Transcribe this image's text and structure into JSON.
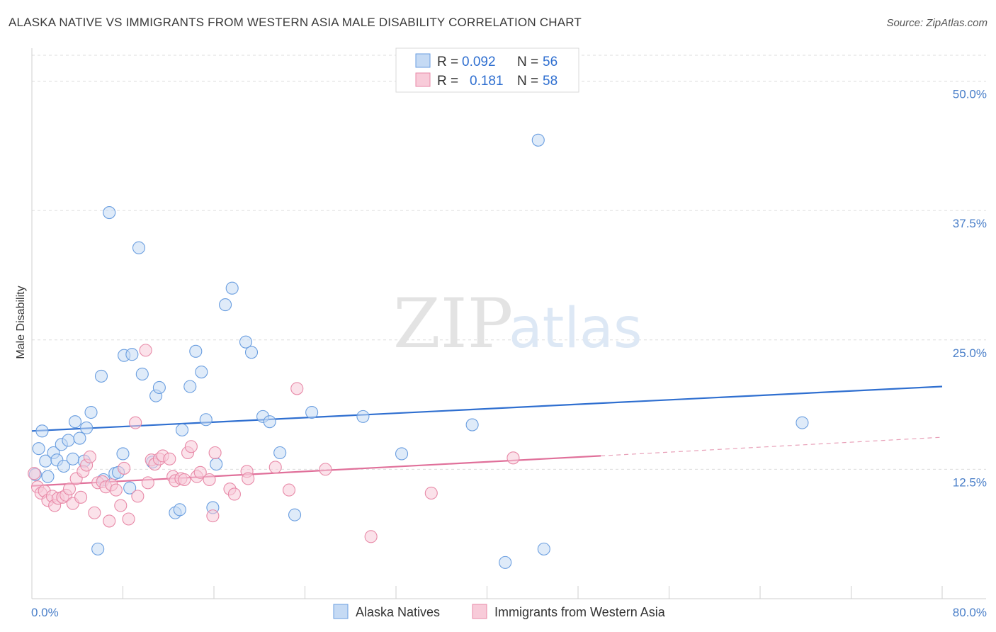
{
  "title": "ALASKA NATIVE VS IMMIGRANTS FROM WESTERN ASIA MALE DISABILITY CORRELATION CHART",
  "source": "Source: ZipAtlas.com",
  "watermark": {
    "zip": "ZIP",
    "atlas": "atlas"
  },
  "legend_top": {
    "r_label": "R =",
    "n_label": "N =",
    "rows": [
      {
        "r": "0.092",
        "n": "56"
      },
      {
        "r": "0.181",
        "n": "58"
      }
    ]
  },
  "chart_data": {
    "type": "scatter",
    "title": "ALASKA NATIVE VS IMMIGRANTS FROM WESTERN ASIA MALE DISABILITY CORRELATION CHART",
    "xlabel": "",
    "ylabel": "Male Disability",
    "xlim": [
      0,
      80
    ],
    "ylim": [
      0,
      52.5
    ],
    "x_ticks": [
      "0.0%",
      "80.0%"
    ],
    "y_ticks": [
      {
        "value": 12.5,
        "label": "12.5%"
      },
      {
        "value": 25,
        "label": "25.0%"
      },
      {
        "value": 37.5,
        "label": "37.5%"
      },
      {
        "value": 50,
        "label": "50.0%"
      }
    ],
    "grid": true,
    "legend_position": "top-center",
    "series": [
      {
        "name": "Alaska Natives",
        "color": "#6a9ee0",
        "fill": "#c5daf4",
        "trend": {
          "x": [
            0,
            80
          ],
          "y": [
            16.2,
            20.5
          ],
          "style": "solid"
        },
        "points": [
          [
            0.3,
            12.0
          ],
          [
            0.6,
            14.5
          ],
          [
            0.9,
            16.2
          ],
          [
            1.2,
            13.3
          ],
          [
            1.4,
            11.8
          ],
          [
            1.9,
            14.1
          ],
          [
            2.2,
            13.4
          ],
          [
            2.6,
            14.9
          ],
          [
            2.8,
            12.8
          ],
          [
            3.2,
            15.3
          ],
          [
            3.6,
            13.5
          ],
          [
            3.8,
            17.1
          ],
          [
            4.2,
            15.5
          ],
          [
            4.6,
            13.3
          ],
          [
            4.8,
            16.5
          ],
          [
            5.2,
            18.0
          ],
          [
            5.8,
            4.8
          ],
          [
            6.1,
            21.5
          ],
          [
            6.3,
            11.5
          ],
          [
            6.8,
            37.3
          ],
          [
            7.3,
            12.1
          ],
          [
            7.6,
            12.2
          ],
          [
            8.0,
            14.0
          ],
          [
            8.1,
            23.5
          ],
          [
            8.6,
            10.7
          ],
          [
            8.8,
            23.6
          ],
          [
            9.4,
            33.9
          ],
          [
            9.7,
            21.7
          ],
          [
            10.6,
            13.2
          ],
          [
            10.9,
            19.6
          ],
          [
            11.2,
            20.4
          ],
          [
            12.6,
            8.3
          ],
          [
            13.0,
            8.6
          ],
          [
            13.2,
            16.3
          ],
          [
            13.9,
            20.5
          ],
          [
            14.4,
            23.9
          ],
          [
            14.9,
            21.9
          ],
          [
            15.3,
            17.3
          ],
          [
            15.9,
            8.8
          ],
          [
            16.2,
            13.0
          ],
          [
            17.0,
            28.4
          ],
          [
            17.6,
            30.0
          ],
          [
            18.8,
            24.8
          ],
          [
            19.3,
            23.8
          ],
          [
            20.3,
            17.6
          ],
          [
            20.9,
            17.1
          ],
          [
            21.8,
            14.1
          ],
          [
            23.1,
            8.1
          ],
          [
            24.6,
            18.0
          ],
          [
            29.1,
            17.6
          ],
          [
            32.5,
            14.0
          ],
          [
            38.7,
            16.8
          ],
          [
            41.6,
            3.5
          ],
          [
            44.5,
            44.3
          ],
          [
            45.0,
            4.8
          ],
          [
            67.7,
            17.0
          ]
        ]
      },
      {
        "name": "Immigrants from Western Asia",
        "color": "#e88aa8",
        "fill": "#f8cbd9",
        "trend": {
          "x": [
            0,
            50
          ],
          "y": [
            10.9,
            13.8
          ],
          "style": "solid",
          "extended": {
            "x": [
              50,
              80
            ],
            "y": [
              13.8,
              15.6
            ],
            "style": "dashed"
          }
        },
        "points": [
          [
            0.2,
            12.1
          ],
          [
            0.5,
            10.8
          ],
          [
            0.8,
            10.2
          ],
          [
            1.1,
            10.4
          ],
          [
            1.4,
            9.5
          ],
          [
            1.8,
            9.9
          ],
          [
            2.0,
            9.0
          ],
          [
            2.3,
            9.7
          ],
          [
            2.7,
            9.8
          ],
          [
            3.0,
            10.0
          ],
          [
            3.3,
            10.6
          ],
          [
            3.6,
            9.2
          ],
          [
            3.9,
            11.6
          ],
          [
            4.3,
            9.8
          ],
          [
            4.5,
            12.3
          ],
          [
            4.8,
            12.9
          ],
          [
            5.1,
            13.7
          ],
          [
            5.5,
            8.3
          ],
          [
            5.8,
            11.2
          ],
          [
            6.2,
            11.3
          ],
          [
            6.5,
            10.8
          ],
          [
            6.8,
            7.5
          ],
          [
            7.0,
            11.0
          ],
          [
            7.4,
            10.5
          ],
          [
            7.8,
            9.0
          ],
          [
            8.1,
            12.6
          ],
          [
            8.5,
            7.7
          ],
          [
            9.1,
            17.0
          ],
          [
            9.3,
            9.9
          ],
          [
            10.0,
            24.0
          ],
          [
            10.2,
            11.2
          ],
          [
            10.5,
            13.4
          ],
          [
            10.8,
            13.0
          ],
          [
            11.2,
            13.5
          ],
          [
            11.5,
            13.8
          ],
          [
            12.1,
            13.5
          ],
          [
            12.4,
            11.8
          ],
          [
            12.6,
            11.4
          ],
          [
            13.1,
            11.6
          ],
          [
            13.4,
            11.5
          ],
          [
            13.7,
            14.1
          ],
          [
            14.0,
            14.7
          ],
          [
            14.5,
            11.8
          ],
          [
            14.8,
            12.2
          ],
          [
            15.6,
            11.5
          ],
          [
            15.9,
            8.0
          ],
          [
            16.1,
            14.1
          ],
          [
            17.4,
            10.6
          ],
          [
            17.8,
            10.1
          ],
          [
            18.9,
            12.3
          ],
          [
            19.0,
            11.6
          ],
          [
            21.4,
            12.7
          ],
          [
            22.6,
            10.5
          ],
          [
            23.3,
            20.3
          ],
          [
            25.8,
            12.5
          ],
          [
            29.8,
            6.0
          ],
          [
            35.1,
            10.2
          ],
          [
            42.3,
            13.6
          ]
        ]
      }
    ]
  }
}
